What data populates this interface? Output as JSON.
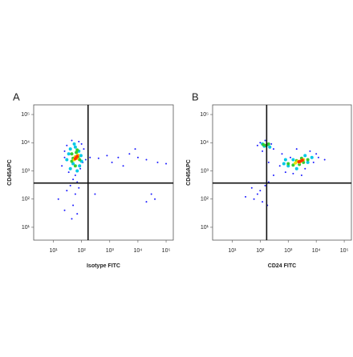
{
  "chart_data": [
    {
      "type": "scatter",
      "panel_label": "A",
      "x_label": "Isotype FITC",
      "y_label": "CD45APC",
      "log_x": true,
      "log_y": true,
      "xlim": [
        2,
        180000
      ],
      "ylim": [
        3.5,
        220000
      ],
      "xticks": [
        {
          "value": 10,
          "label": "10¹"
        },
        {
          "value": 100,
          "label": "10²"
        },
        {
          "value": 1000,
          "label": "10³"
        },
        {
          "value": 10000,
          "label": "10⁴"
        },
        {
          "value": 100000,
          "label": "10⁵"
        }
      ],
      "yticks": [
        {
          "value": 10,
          "label": "10¹"
        },
        {
          "value": 100,
          "label": "10²"
        },
        {
          "value": 1000,
          "label": "10³"
        },
        {
          "value": 10000,
          "label": "10⁴"
        },
        {
          "value": 100000,
          "label": "10⁵"
        }
      ],
      "xgate": 170,
      "ygate": 370,
      "series": [
        {
          "color": "#1a1aff",
          "x": [
            30,
            45,
            80,
            100,
            25,
            20,
            35,
            60,
            90,
            110,
            50,
            70,
            40,
            80,
            30,
            60,
            15,
            50,
            25,
            70,
            45,
            140,
            200,
            400,
            800,
            2000,
            5000,
            10000,
            20000,
            50000,
            3000,
            8000,
            30000,
            40000,
            20000,
            100000,
            300,
            1200,
            25,
            120
          ],
          "y": [
            8000,
            12000,
            11000,
            9000,
            3000,
            1500,
            900,
            700,
            1200,
            2000,
            500,
            400,
            300,
            250,
            200,
            150,
            100,
            60,
            40,
            30,
            20,
            2500,
            3000,
            2800,
            3500,
            3000,
            4000,
            3000,
            2500,
            2000,
            1500,
            6000,
            150,
            100,
            80,
            1800,
            150,
            2000,
            5000,
            6000
          ]
        },
        {
          "color": "#00c8e6",
          "x": [
            40,
            60,
            80,
            35,
            95,
            50,
            85,
            40,
            70,
            100,
            30,
            55
          ],
          "y": [
            6000,
            7000,
            5000,
            4000,
            3500,
            1800,
            1500,
            1200,
            1000,
            2200,
            2500,
            9000
          ]
        },
        {
          "color": "#33cc33",
          "x": [
            45,
            65,
            75,
            50,
            85,
            60,
            45,
            70
          ],
          "y": [
            4000,
            4500,
            3000,
            2800,
            2500,
            1500,
            2200,
            5500
          ]
        },
        {
          "color": "#f0e000",
          "x": [
            60,
            70,
            55,
            75
          ],
          "y": [
            3200,
            2800,
            2500,
            3600
          ]
        },
        {
          "color": "#ff3300",
          "x": [
            65,
            60,
            70
          ],
          "y": [
            3000,
            2700,
            3300
          ]
        }
      ]
    },
    {
      "type": "scatter",
      "panel_label": "B",
      "x_label": "CD24 FITC",
      "y_label": "CD45APC",
      "log_x": true,
      "log_y": true,
      "xlim": [
        2,
        180000
      ],
      "ylim": [
        3.5,
        220000
      ],
      "xticks": [
        {
          "value": 10,
          "label": "10¹"
        },
        {
          "value": 100,
          "label": "10²"
        },
        {
          "value": 1000,
          "label": "10³"
        },
        {
          "value": 10000,
          "label": "10⁴"
        },
        {
          "value": 100000,
          "label": "10⁵"
        }
      ],
      "yticks": [
        {
          "value": 10,
          "label": "10¹"
        },
        {
          "value": 100,
          "label": "10²"
        },
        {
          "value": 1000,
          "label": "10³"
        },
        {
          "value": 10000,
          "label": "10⁴"
        },
        {
          "value": 100000,
          "label": "10⁵"
        }
      ],
      "xgate": 170,
      "ygate": 370,
      "series": [
        {
          "color": "#1a1aff",
          "x": [
            100,
            80,
            150,
            250,
            300,
            120,
            200,
            500,
            800,
            1500,
            4000,
            8000,
            12000,
            6000,
            10000,
            600,
            2000,
            150,
            100,
            80,
            200,
            60,
            120,
            180,
            50,
            30,
            300,
            20000,
            3000,
            1200
          ],
          "y": [
            10000,
            8000,
            12000,
            9000,
            6000,
            5000,
            2000,
            1500,
            900,
            800,
            1200,
            2000,
            3000,
            5000,
            4000,
            4000,
            6000,
            300,
            200,
            150,
            400,
            100,
            80,
            60,
            250,
            120,
            700,
            2500,
            700,
            3000
          ]
        },
        {
          "color": "#00c8e6",
          "x": [
            120,
            180,
            220,
            140,
            700,
            1000,
            2000,
            5000,
            7000,
            4000,
            1500,
            800
          ],
          "y": [
            9000,
            8500,
            7000,
            7500,
            1800,
            1500,
            1200,
            2000,
            3000,
            3500,
            2500,
            2500
          ]
        },
        {
          "color": "#33cc33",
          "x": [
            160,
            200,
            130,
            1000,
            1500,
            2500,
            3500,
            5000,
            2000,
            3000
          ],
          "y": [
            8000,
            9000,
            8500,
            1800,
            1600,
            1700,
            2000,
            2500,
            2300,
            2800
          ]
        },
        {
          "color": "#f0e000",
          "x": [
            1800,
            2500,
            3000,
            3500,
            2200
          ],
          "y": [
            1900,
            2000,
            2300,
            2500,
            2200
          ]
        },
        {
          "color": "#ff3300",
          "x": [
            2700,
            3200,
            2400
          ],
          "y": [
            2200,
            2400,
            2100
          ]
        }
      ]
    }
  ]
}
